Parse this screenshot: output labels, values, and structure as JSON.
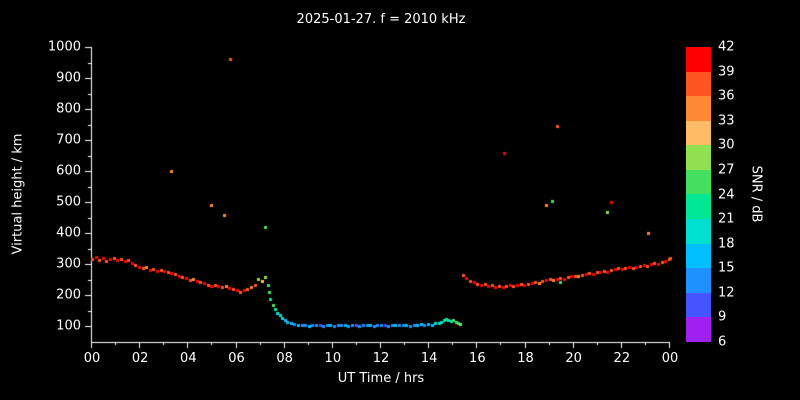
{
  "chart_data": {
    "type": "scatter",
    "title": "2025-01-27. f = 2010 kHz",
    "xlabel": "UT Time / hrs",
    "ylabel": "Virtual height / km",
    "xlim": [
      0,
      24
    ],
    "ylim": [
      50,
      1000
    ],
    "background": "#000000",
    "text_color": "#ffffff",
    "x_ticks": {
      "values": [
        0,
        2,
        4,
        6,
        8,
        10,
        12,
        14,
        16,
        18,
        20,
        22,
        24
      ],
      "labels": [
        "00",
        "02",
        "04",
        "06",
        "08",
        "10",
        "12",
        "14",
        "16",
        "18",
        "20",
        "22",
        "00"
      ]
    },
    "y_ticks": [
      100,
      200,
      300,
      400,
      500,
      600,
      700,
      800,
      900,
      1000
    ],
    "colorbar": {
      "label": "SNR / dB",
      "min": 6,
      "max": 42,
      "tick_values": [
        6,
        9,
        12,
        15,
        18,
        21,
        24,
        27,
        30,
        33,
        36,
        39,
        42
      ],
      "segment_colors_bottom_to_top": [
        "#a020f0",
        "#4455ff",
        "#1e90ff",
        "#00bfff",
        "#00e0d0",
        "#00e896",
        "#44e060",
        "#90e050",
        "#ffbb66",
        "#ff8833",
        "#ff5522",
        "#ff0000"
      ]
    },
    "marker_size_px": 3,
    "points_format": [
      "ut_hours",
      "virtual_height_km",
      "snr_db"
    ],
    "points": [
      [
        0,
        318,
        36
      ],
      [
        0.15,
        323,
        39
      ],
      [
        0.3,
        315,
        36
      ],
      [
        0.45,
        320,
        39
      ],
      [
        0.6,
        312,
        36
      ],
      [
        0.75,
        316,
        39
      ],
      [
        0.9,
        320,
        36
      ],
      [
        1.05,
        313,
        39
      ],
      [
        1.2,
        317,
        36
      ],
      [
        1.35,
        310,
        39
      ],
      [
        1.5,
        313,
        36
      ],
      [
        1.65,
        306,
        39
      ],
      [
        1.8,
        298,
        36
      ],
      [
        1.95,
        292,
        39
      ],
      [
        2.1,
        287,
        36
      ],
      [
        2.25,
        291,
        33
      ],
      [
        2.4,
        283,
        39
      ],
      [
        2.55,
        286,
        36
      ],
      [
        2.7,
        279,
        39
      ],
      [
        2.85,
        283,
        36
      ],
      [
        3,
        280,
        39
      ],
      [
        3.15,
        276,
        36
      ],
      [
        3.3,
        271,
        39
      ],
      [
        3.45,
        268,
        36
      ],
      [
        3.6,
        264,
        39
      ],
      [
        3.75,
        260,
        36
      ],
      [
        3.9,
        256,
        39
      ],
      [
        4.05,
        251,
        36
      ],
      [
        4.2,
        253,
        33
      ],
      [
        4.35,
        247,
        39
      ],
      [
        4.5,
        243,
        36
      ],
      [
        4.65,
        239,
        39
      ],
      [
        4.8,
        235,
        36
      ],
      [
        4.95,
        231,
        39
      ],
      [
        5.1,
        234,
        36
      ],
      [
        5.25,
        229,
        39
      ],
      [
        5.4,
        226,
        36
      ],
      [
        5.55,
        229,
        33
      ],
      [
        5.7,
        223,
        39
      ],
      [
        5.85,
        220,
        36
      ],
      [
        6,
        216,
        39
      ],
      [
        6.15,
        212,
        36
      ],
      [
        6.3,
        217,
        39
      ],
      [
        6.45,
        222,
        36
      ],
      [
        6.6,
        228,
        33
      ],
      [
        6.75,
        233,
        36
      ],
      [
        6.9,
        252,
        27
      ],
      [
        7.05,
        245,
        30
      ],
      [
        7.2,
        258,
        27
      ],
      [
        7.3,
        235,
        24
      ],
      [
        7.35,
        210,
        24
      ],
      [
        7.4,
        190,
        21
      ],
      [
        7.5,
        170,
        24
      ],
      [
        7.6,
        155,
        21
      ],
      [
        7.7,
        145,
        18
      ],
      [
        7.8,
        137,
        18
      ],
      [
        7.9,
        128,
        18
      ],
      [
        8,
        120,
        15
      ],
      [
        8.1,
        115,
        15
      ],
      [
        8.25,
        110,
        15
      ],
      [
        8.4,
        108,
        12
      ],
      [
        8.55,
        106,
        15
      ],
      [
        8.7,
        104,
        12
      ],
      [
        8.85,
        106,
        12
      ],
      [
        9,
        103,
        15
      ],
      [
        9.15,
        105,
        12
      ],
      [
        9.3,
        104,
        12
      ],
      [
        9.45,
        106,
        9
      ],
      [
        9.6,
        103,
        12
      ],
      [
        9.75,
        105,
        12
      ],
      [
        9.9,
        104,
        15
      ],
      [
        10.05,
        103,
        12
      ],
      [
        10.2,
        105,
        12
      ],
      [
        10.35,
        104,
        12
      ],
      [
        10.5,
        106,
        15
      ],
      [
        10.65,
        103,
        12
      ],
      [
        10.8,
        105,
        12
      ],
      [
        10.95,
        104,
        9
      ],
      [
        11.1,
        103,
        12
      ],
      [
        11.25,
        105,
        12
      ],
      [
        11.4,
        106,
        12
      ],
      [
        11.55,
        104,
        15
      ],
      [
        11.7,
        103,
        12
      ],
      [
        11.85,
        105,
        12
      ],
      [
        12,
        104,
        12
      ],
      [
        12.15,
        106,
        9
      ],
      [
        12.3,
        103,
        12
      ],
      [
        12.45,
        105,
        12
      ],
      [
        12.6,
        104,
        15
      ],
      [
        12.75,
        106,
        12
      ],
      [
        12.9,
        104,
        12
      ],
      [
        13.05,
        105,
        15
      ],
      [
        13.2,
        103,
        12
      ],
      [
        13.35,
        106,
        12
      ],
      [
        13.5,
        104,
        15
      ],
      [
        13.65,
        107,
        15
      ],
      [
        13.8,
        105,
        12
      ],
      [
        13.95,
        108,
        15
      ],
      [
        14.1,
        106,
        15
      ],
      [
        14.25,
        110,
        18
      ],
      [
        14.4,
        112,
        18
      ],
      [
        14.5,
        116,
        18
      ],
      [
        14.6,
        120,
        21
      ],
      [
        14.7,
        123,
        21
      ],
      [
        14.8,
        120,
        18
      ],
      [
        14.9,
        118,
        21
      ],
      [
        15,
        121,
        24
      ],
      [
        15.1,
        115,
        24
      ],
      [
        15.2,
        111,
        24
      ],
      [
        15.3,
        108,
        27
      ],
      [
        15.4,
        265,
        36
      ],
      [
        15.55,
        256,
        39
      ],
      [
        15.7,
        248,
        36
      ],
      [
        15.85,
        242,
        39
      ],
      [
        16,
        237,
        36
      ],
      [
        16.15,
        233,
        39
      ],
      [
        16.3,
        236,
        36
      ],
      [
        16.45,
        230,
        39
      ],
      [
        16.6,
        233,
        36
      ],
      [
        16.75,
        228,
        39
      ],
      [
        16.9,
        231,
        36
      ],
      [
        17.05,
        227,
        39
      ],
      [
        17.2,
        230,
        36
      ],
      [
        17.35,
        233,
        39
      ],
      [
        17.5,
        229,
        36
      ],
      [
        17.65,
        232,
        39
      ],
      [
        17.8,
        236,
        36
      ],
      [
        17.95,
        233,
        39
      ],
      [
        18.1,
        238,
        36
      ],
      [
        18.25,
        241,
        39
      ],
      [
        18.4,
        244,
        36
      ],
      [
        18.55,
        241,
        33
      ],
      [
        18.7,
        246,
        36
      ],
      [
        18.85,
        249,
        39
      ],
      [
        19,
        252,
        36
      ],
      [
        19.15,
        249,
        33
      ],
      [
        19.3,
        254,
        39
      ],
      [
        19.45,
        244,
        24
      ],
      [
        19.45,
        257,
        36
      ],
      [
        19.6,
        254,
        39
      ],
      [
        19.75,
        259,
        36
      ],
      [
        19.9,
        261,
        39
      ],
      [
        20.05,
        263,
        36
      ],
      [
        20.2,
        261,
        33
      ],
      [
        20.35,
        266,
        36
      ],
      [
        20.5,
        269,
        39
      ],
      [
        20.65,
        272,
        36
      ],
      [
        20.8,
        269,
        39
      ],
      [
        20.95,
        274,
        36
      ],
      [
        21.1,
        276,
        39
      ],
      [
        21.25,
        279,
        36
      ],
      [
        21.4,
        277,
        39
      ],
      [
        21.55,
        281,
        36
      ],
      [
        21.7,
        284,
        39
      ],
      [
        21.85,
        287,
        36
      ],
      [
        22,
        285,
        39
      ],
      [
        22.15,
        289,
        36
      ],
      [
        22.3,
        291,
        39
      ],
      [
        22.45,
        288,
        36
      ],
      [
        22.6,
        293,
        39
      ],
      [
        22.75,
        296,
        36
      ],
      [
        22.9,
        298,
        39
      ],
      [
        23.05,
        296,
        36
      ],
      [
        23.2,
        301,
        39
      ],
      [
        23.35,
        304,
        36
      ],
      [
        23.5,
        302,
        39
      ],
      [
        23.65,
        307,
        36
      ],
      [
        23.8,
        311,
        39
      ],
      [
        23.95,
        316,
        36
      ],
      [
        24,
        320,
        36
      ],
      [
        3.3,
        600,
        33
      ],
      [
        4.95,
        490,
        33
      ],
      [
        5.5,
        460,
        33
      ],
      [
        5.75,
        960,
        36
      ],
      [
        7.2,
        420,
        24
      ],
      [
        17.1,
        660,
        39
      ],
      [
        18.85,
        490,
        33
      ],
      [
        19.1,
        505,
        24
      ],
      [
        19.3,
        745,
        36
      ],
      [
        21.4,
        470,
        27
      ],
      [
        21.55,
        500,
        39
      ],
      [
        23.1,
        400,
        33
      ]
    ]
  }
}
